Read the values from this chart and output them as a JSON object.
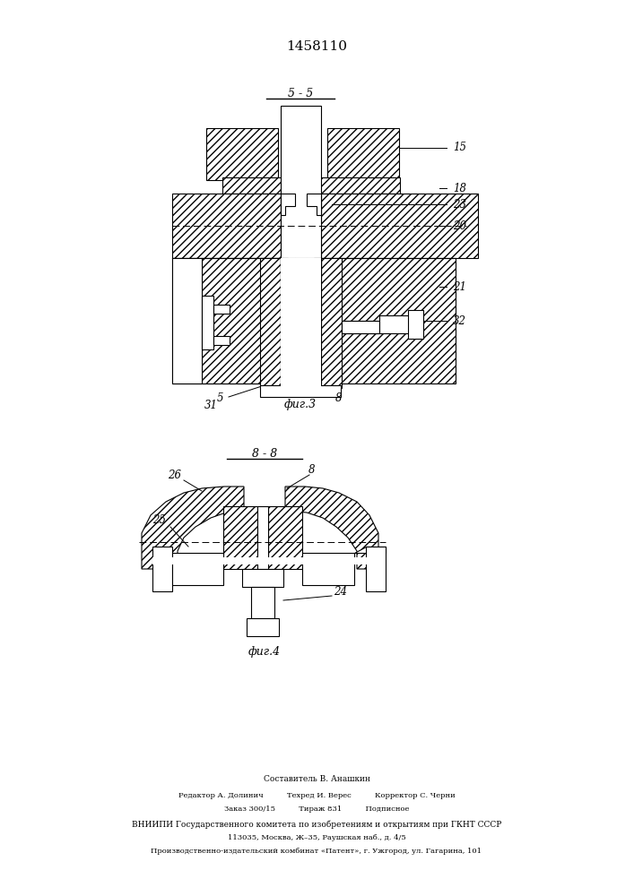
{
  "title": "1458110",
  "title_fontsize": 11,
  "fig_width": 7.07,
  "fig_height": 10.0,
  "fig1_label": "фиг.3",
  "fig2_label": "фиг.4",
  "section_label_1": "5 – 5",
  "section_label_2": "8 – 8",
  "footer_lines": [
    "Составитель В. Анашкин",
    "Редактор А. Долинич          Техред И. Верес          Корректор С. Черни",
    "Заказ 300/15          Тираж 831          Подписное",
    "ВНИИПИ Государственного комитета по изобретениям и открытиям при ГКНТ СССР",
    "113035, Москва, Ж–35, Раушская наб., д. 4/5",
    "Производственно-издательский комбинат «Патент», г. Ужгород, ул. Гагарина, 101"
  ]
}
